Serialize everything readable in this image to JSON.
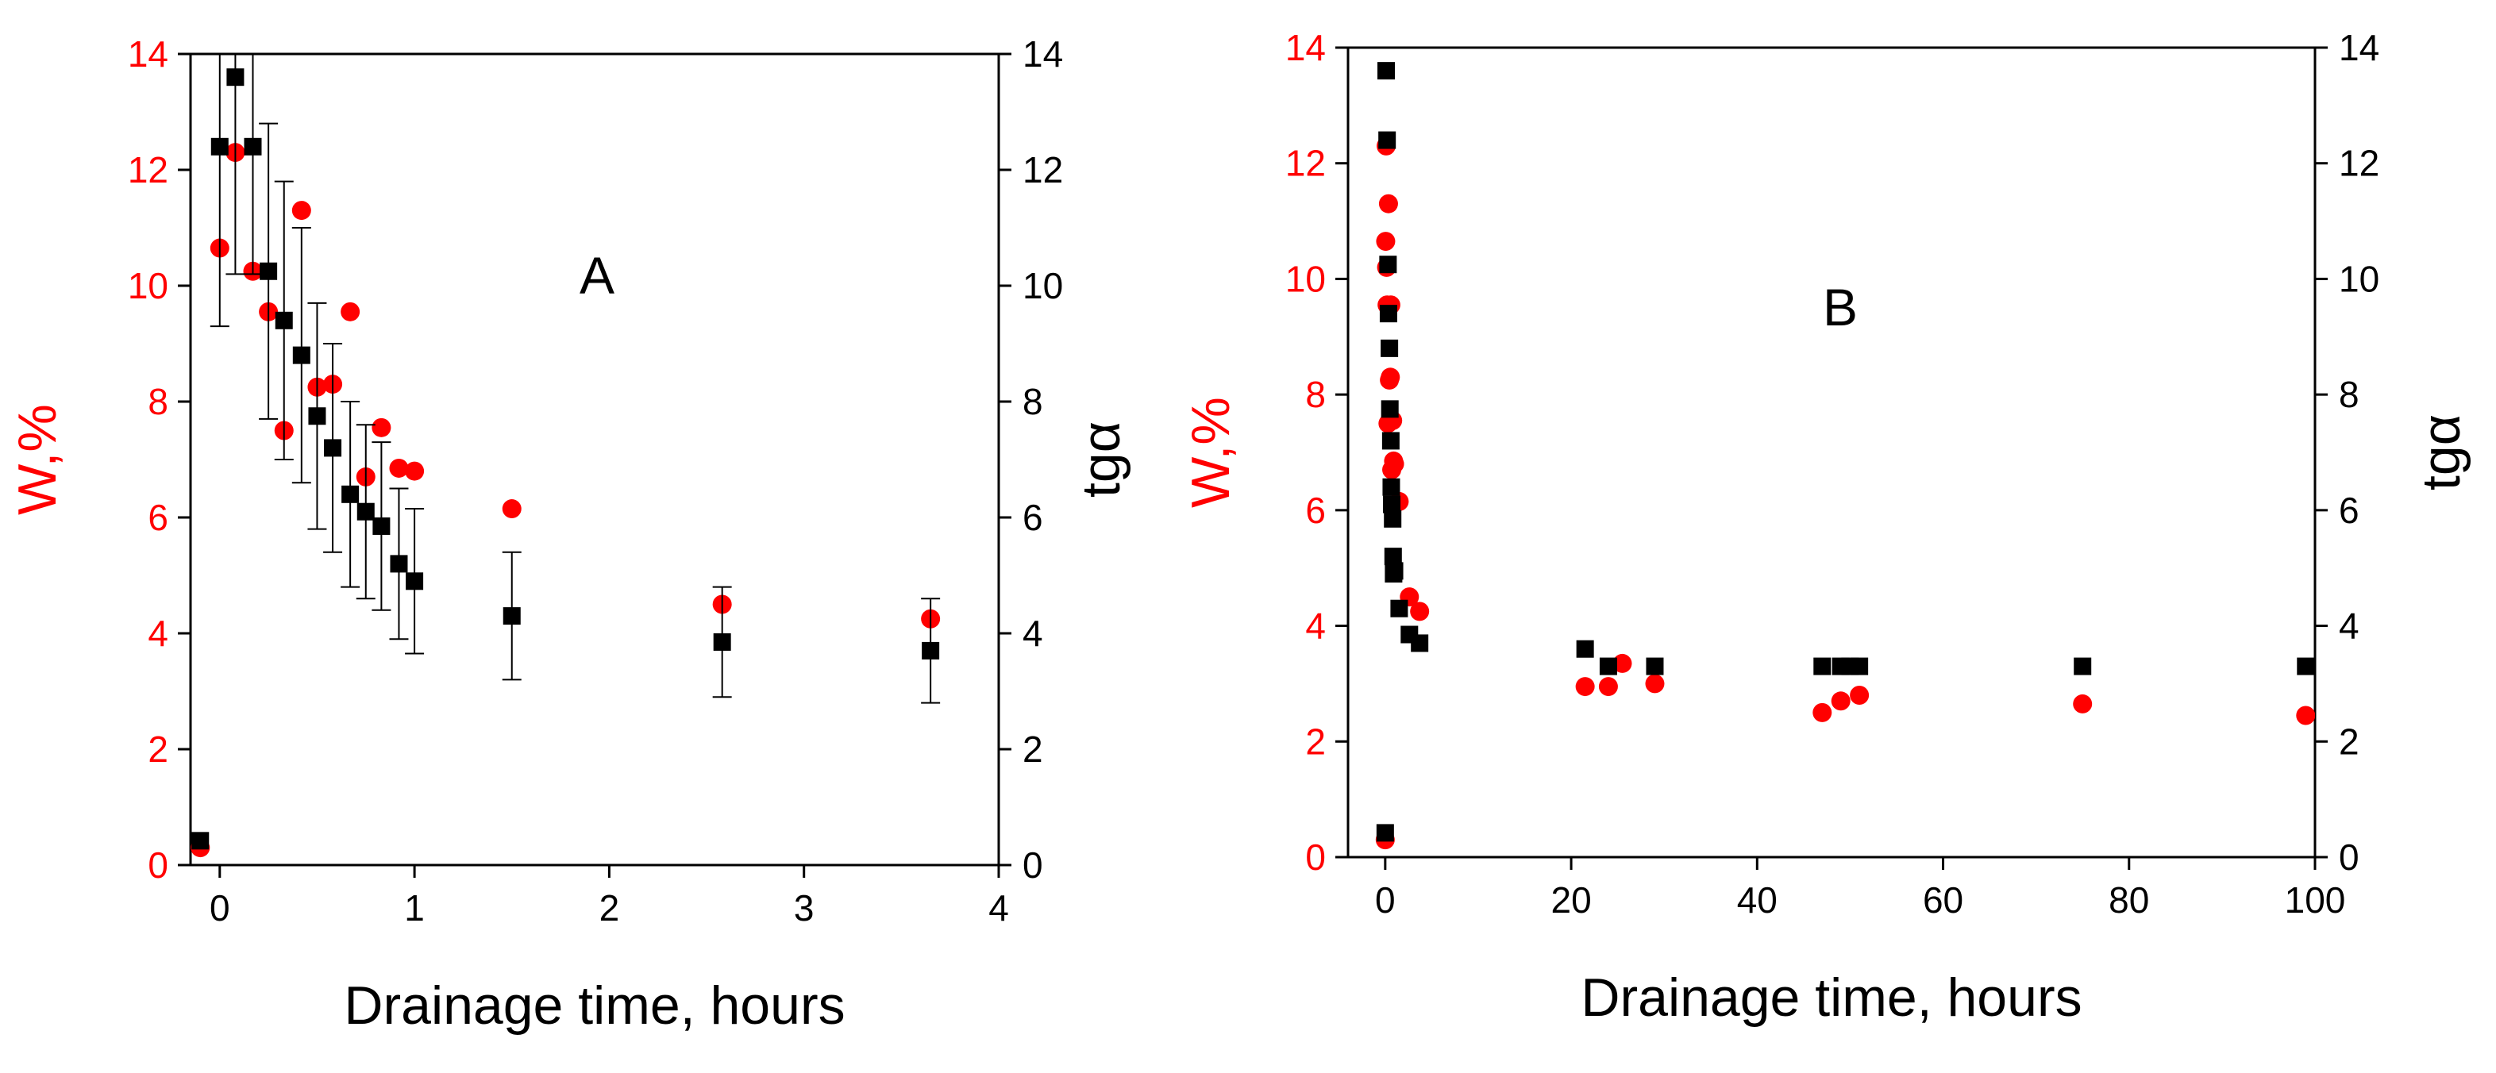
{
  "colors": {
    "w_series": "#ff0000",
    "tg_series": "#000000",
    "axis": "#000000"
  },
  "chart_data": [
    {
      "type": "scatter",
      "panel_label": "A",
      "xlabel": "Drainage time, hours",
      "ylabel_left": "W,%",
      "ylabel_right": "tgα",
      "xlim": [
        -0.15,
        4
      ],
      "xticks": [
        0,
        1,
        2,
        3,
        4
      ],
      "ylim_left": [
        0,
        14
      ],
      "ylim_right": [
        0,
        14
      ],
      "yticks_left": [
        0,
        2,
        4,
        6,
        8,
        10,
        12,
        14
      ],
      "yticks_right": [
        0,
        2,
        4,
        6,
        8,
        10,
        12,
        14
      ],
      "series": [
        {
          "name": "W,%",
          "axis": "left",
          "marker": "circle",
          "color": "#ff0000",
          "x": [
            -0.1,
            0.0,
            0.08,
            0.17,
            0.25,
            0.33,
            0.42,
            0.5,
            0.58,
            0.67,
            0.75,
            0.83,
            0.92,
            1.0,
            1.5,
            2.58,
            3.65
          ],
          "y": [
            0.3,
            10.65,
            12.3,
            10.25,
            9.55,
            7.5,
            11.3,
            8.25,
            8.3,
            9.55,
            6.7,
            7.55,
            6.85,
            6.8,
            6.15,
            4.5,
            4.25
          ]
        },
        {
          "name": "tgα",
          "axis": "right",
          "marker": "square",
          "color": "#000000",
          "x": [
            -0.1,
            0.0,
            0.08,
            0.17,
            0.25,
            0.33,
            0.42,
            0.5,
            0.58,
            0.67,
            0.75,
            0.83,
            0.92,
            1.0,
            1.5,
            2.58,
            3.65
          ],
          "y": [
            0.42,
            12.4,
            13.6,
            12.4,
            10.25,
            9.4,
            8.8,
            7.75,
            7.2,
            6.4,
            6.1,
            5.85,
            5.2,
            4.9,
            4.3,
            3.85,
            3.7
          ],
          "err": [
            0,
            3.1,
            3.4,
            2.2,
            2.55,
            2.4,
            2.2,
            1.95,
            1.8,
            1.6,
            1.5,
            1.45,
            1.3,
            1.25,
            1.1,
            0.95,
            0.9
          ]
        }
      ]
    },
    {
      "type": "scatter",
      "panel_label": "B",
      "xlabel": "Drainage time, hours",
      "ylabel_left": "W,%",
      "ylabel_right": "tgα",
      "xlim": [
        -4,
        100
      ],
      "xticks": [
        0,
        20,
        40,
        60,
        80,
        100
      ],
      "ylim_left": [
        0,
        14
      ],
      "ylim_right": [
        0,
        14
      ],
      "yticks_left": [
        0,
        2,
        4,
        6,
        8,
        10,
        12,
        14
      ],
      "yticks_right": [
        0,
        2,
        4,
        6,
        8,
        10,
        12,
        14
      ],
      "series": [
        {
          "name": "W,%",
          "axis": "left",
          "marker": "circle",
          "color": "#ff0000",
          "x": [
            0.0,
            0.05,
            0.1,
            0.15,
            0.2,
            0.3,
            0.35,
            0.45,
            0.55,
            0.6,
            0.7,
            0.8,
            0.9,
            1.0,
            1.5,
            2.6,
            3.7,
            21.5,
            24.0,
            25.5,
            29.0,
            47.0,
            49.0,
            51.0,
            75.0,
            99.0
          ],
          "y": [
            0.3,
            10.65,
            12.3,
            10.2,
            9.55,
            7.5,
            11.3,
            8.25,
            8.3,
            9.55,
            6.7,
            7.55,
            6.85,
            6.8,
            6.15,
            4.5,
            4.25,
            2.95,
            2.95,
            3.35,
            3.0,
            2.5,
            2.7,
            2.8,
            2.65,
            2.45
          ]
        },
        {
          "name": "tgα",
          "axis": "right",
          "marker": "square",
          "color": "#000000",
          "x": [
            0.0,
            0.1,
            0.2,
            0.3,
            0.35,
            0.45,
            0.5,
            0.6,
            0.65,
            0.7,
            0.8,
            0.85,
            0.9,
            1.0,
            1.5,
            2.6,
            3.7,
            21.5,
            24.0,
            29.0,
            47.0,
            49.0,
            50.0,
            51.0,
            75.0,
            99.0
          ],
          "y": [
            0.42,
            13.6,
            12.4,
            10.25,
            9.4,
            8.8,
            7.75,
            7.2,
            6.4,
            6.1,
            5.85,
            5.2,
            4.9,
            4.95,
            4.3,
            3.85,
            3.7,
            3.6,
            3.3,
            3.3,
            3.3,
            3.3,
            3.3,
            3.3,
            3.3,
            3.3
          ]
        }
      ]
    }
  ]
}
